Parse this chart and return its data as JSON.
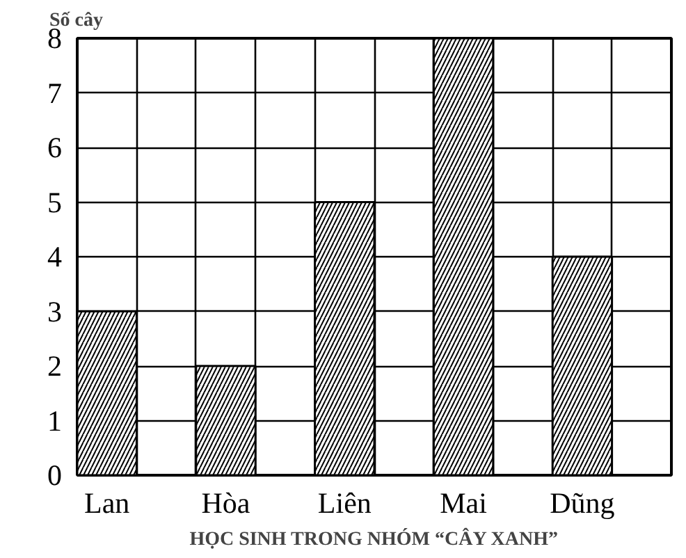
{
  "chart_data": {
    "type": "bar",
    "ylabel": "Số cây",
    "xlabel": "HỌC SINH TRONG NHÓM “CÂY XANH”",
    "categories": [
      "Lan",
      "Hòa",
      "Liên",
      "Mai",
      "Dũng"
    ],
    "values": [
      3,
      2,
      5,
      8,
      4
    ],
    "color": "#000000",
    "ylim": [
      0,
      8
    ],
    "yticks": [
      0,
      1,
      2,
      3,
      4,
      5,
      6,
      7,
      8
    ],
    "grid": true
  }
}
